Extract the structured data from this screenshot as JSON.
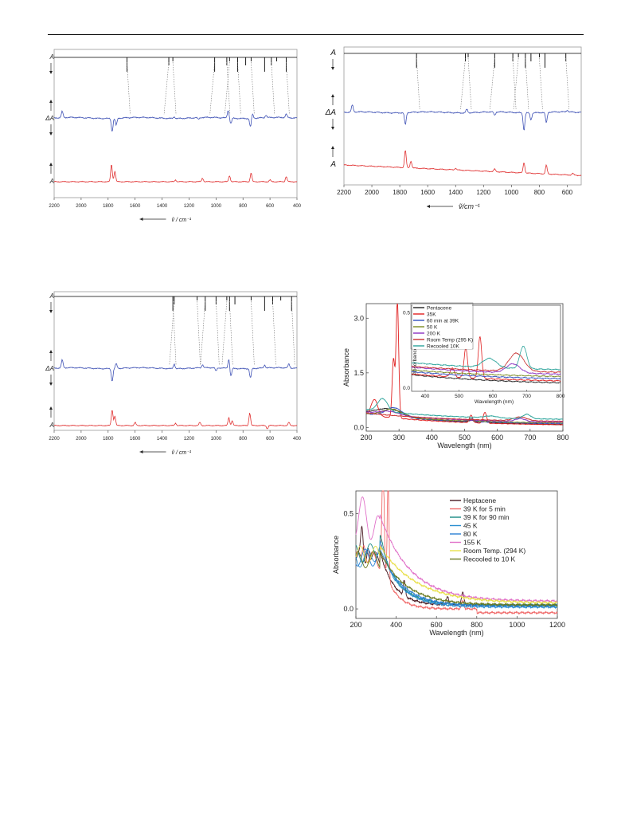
{
  "chart_data": [
    {
      "id": "ir-left-top",
      "type": "line",
      "xlabel": "ṽ / cm⁻¹",
      "xlim": [
        2200,
        400
      ],
      "x_ticks": [
        2200,
        2000,
        1800,
        1600,
        1400,
        1200,
        1000,
        800,
        600,
        400
      ],
      "trace_labels": [
        "A",
        "ΔA",
        "A"
      ],
      "series_colors": [
        "#000000",
        "#3f52b5",
        "#e03030"
      ],
      "stick_peaks": [
        1660,
        1350,
        1320,
        1010,
        920,
        900,
        840,
        780,
        740,
        640,
        590,
        550,
        480
      ],
      "difference_peaks": [
        {
          "x": 2140,
          "y": 0.35
        },
        {
          "x": 1770,
          "y": -0.75
        },
        {
          "x": 1740,
          "y": -0.4
        },
        {
          "x": 1310,
          "y": 0.1
        },
        {
          "x": 1130,
          "y": -0.1
        },
        {
          "x": 910,
          "y": 0.45
        },
        {
          "x": 890,
          "y": -0.3
        },
        {
          "x": 745,
          "y": -0.5
        },
        {
          "x": 730,
          "y": 0.25
        },
        {
          "x": 630,
          "y": 0.15
        },
        {
          "x": 480,
          "y": 0.2
        }
      ],
      "product_peaks": [
        {
          "x": 1775,
          "y": 1.0
        },
        {
          "x": 1750,
          "y": 0.6
        },
        {
          "x": 1300,
          "y": 0.1
        },
        {
          "x": 1100,
          "y": 0.2
        },
        {
          "x": 900,
          "y": 0.35
        },
        {
          "x": 740,
          "y": 0.5
        },
        {
          "x": 600,
          "y": 0.1
        },
        {
          "x": 480,
          "y": 0.3
        }
      ]
    },
    {
      "id": "ir-right-top",
      "type": "line",
      "xlabel": "ṽ/cm⁻¹",
      "xlim": [
        2200,
        500
      ],
      "x_ticks": [
        2200,
        2000,
        1800,
        1600,
        1400,
        1200,
        1000,
        800,
        600
      ],
      "trace_labels": [
        "A",
        "ΔA",
        "A"
      ],
      "series_colors": [
        "#000000",
        "#3f52b5",
        "#e03030"
      ],
      "stick_peaks": [
        1680,
        1330,
        1310,
        1120,
        990,
        950,
        900,
        860,
        800,
        760,
        610
      ],
      "difference_peaks": [
        {
          "x": 2140,
          "y": 0.4
        },
        {
          "x": 1760,
          "y": -0.7
        },
        {
          "x": 1320,
          "y": 0.2
        },
        {
          "x": 1120,
          "y": -0.2
        },
        {
          "x": 910,
          "y": -1.0
        },
        {
          "x": 860,
          "y": -0.4
        },
        {
          "x": 750,
          "y": -0.6
        },
        {
          "x": 600,
          "y": 0.1
        }
      ],
      "product_peaks": [
        {
          "x": 1760,
          "y": 1.0
        },
        {
          "x": 1720,
          "y": 0.4
        },
        {
          "x": 1400,
          "y": 0.1
        },
        {
          "x": 1120,
          "y": 0.15
        },
        {
          "x": 910,
          "y": 0.6
        },
        {
          "x": 750,
          "y": 0.5
        },
        {
          "x": 560,
          "y": 0.1
        }
      ]
    },
    {
      "id": "ir-left-bottom",
      "type": "line",
      "xlabel": "ṽ / cm⁻¹",
      "xlim": [
        2200,
        400
      ],
      "x_ticks": [
        2200,
        2000,
        1800,
        1600,
        1400,
        1200,
        1000,
        800,
        600,
        400
      ],
      "trace_labels": [
        "A",
        "ΔA",
        "A"
      ],
      "series_colors": [
        "#000000",
        "#3f52b5",
        "#e03030"
      ],
      "stick_peaks": [
        1320,
        1310,
        1140,
        1080,
        1000,
        920,
        900,
        860,
        740,
        640,
        580,
        520,
        440
      ],
      "difference_peaks": [
        {
          "x": 2140,
          "y": 0.5
        },
        {
          "x": 1770,
          "y": -0.8
        },
        {
          "x": 1740,
          "y": 0.3
        },
        {
          "x": 1310,
          "y": 0.3
        },
        {
          "x": 1100,
          "y": 0.2
        },
        {
          "x": 1000,
          "y": -0.2
        },
        {
          "x": 905,
          "y": 0.6
        },
        {
          "x": 890,
          "y": -0.5
        },
        {
          "x": 745,
          "y": -0.6
        },
        {
          "x": 640,
          "y": 0.2
        },
        {
          "x": 460,
          "y": 0.25
        }
      ],
      "product_peaks": [
        {
          "x": 1770,
          "y": 1.0
        },
        {
          "x": 1750,
          "y": 0.6
        },
        {
          "x": 1600,
          "y": 0.2
        },
        {
          "x": 1300,
          "y": 0.15
        },
        {
          "x": 1120,
          "y": 0.2
        },
        {
          "x": 905,
          "y": 0.5
        },
        {
          "x": 880,
          "y": 0.3
        },
        {
          "x": 750,
          "y": 0.8
        },
        {
          "x": 620,
          "y": -0.2
        },
        {
          "x": 460,
          "y": 0.2
        }
      ]
    },
    {
      "id": "uvvis-pentacene",
      "type": "line",
      "xlabel": "Wavelength (nm)",
      "ylabel": "Absorbance",
      "xlim": [
        200,
        800
      ],
      "ylim": [
        -0.1,
        3.4
      ],
      "x_ticks": [
        200,
        300,
        400,
        500,
        600,
        700,
        800
      ],
      "y_ticks": [
        0.0,
        1.5,
        3.0
      ],
      "legend_position": "top-right",
      "series": [
        {
          "name": "Pentacene",
          "color": "#222222",
          "offset": 0.05,
          "baseline": 0.35,
          "peaks": [
            {
              "x": 270,
              "y": 0.2,
              "w": 40
            },
            {
              "x": 520,
              "y": 0.05,
              "w": 8
            },
            {
              "x": 560,
              "y": 0.07,
              "w": 8
            }
          ]
        },
        {
          "name": "35K",
          "color": "#e02020",
          "offset": 0.05,
          "baseline": 0.3,
          "peaks": [
            {
              "x": 283,
              "y": 1.6,
              "w": 4
            },
            {
              "x": 295,
              "y": 3.2,
              "w": 4
            },
            {
              "x": 225,
              "y": 0.45,
              "w": 10
            },
            {
              "x": 520,
              "y": 0.2,
              "w": 5
            },
            {
              "x": 562,
              "y": 0.3,
              "w": 5
            }
          ]
        },
        {
          "name": "60 min at 39K",
          "color": "#3050c0",
          "offset": 0.08,
          "baseline": 0.3,
          "peaks": [
            {
              "x": 285,
              "y": 0.25,
              "w": 25
            },
            {
              "x": 520,
              "y": 0.08,
              "w": 8
            }
          ]
        },
        {
          "name": "50 K",
          "color": "#7a8a20",
          "offset": 0.1,
          "baseline": 0.28,
          "peaks": [
            {
              "x": 280,
              "y": 0.2,
              "w": 30
            },
            {
              "x": 520,
              "y": 0.05,
              "w": 8
            }
          ]
        },
        {
          "name": "200 K",
          "color": "#8a30c0",
          "offset": 0.12,
          "baseline": 0.3,
          "peaks": [
            {
              "x": 270,
              "y": 0.1,
              "w": 30
            },
            {
              "x": 670,
              "y": 0.08,
              "w": 15
            }
          ]
        },
        {
          "name": "Room Temp (295 K)",
          "color": "#c83030",
          "offset": 0.15,
          "baseline": 0.25,
          "peaks": [
            {
              "x": 670,
              "y": 0.1,
              "w": 20
            }
          ]
        },
        {
          "name": "Recooled 10K",
          "color": "#2aa39a",
          "offset": 0.2,
          "baseline": 0.3,
          "peaks": [
            {
              "x": 250,
              "y": 0.35,
              "w": 15
            },
            {
              "x": 580,
              "y": 0.05,
              "w": 20
            },
            {
              "x": 690,
              "y": 0.12,
              "w": 12
            }
          ]
        }
      ],
      "inset": {
        "xlabel": "Wavelength (nm)",
        "ylabel": "Absorbance",
        "xlim": [
          360,
          800
        ],
        "ylim": [
          -0.02,
          0.55
        ],
        "x_ticks": [
          400,
          500,
          600,
          700,
          800
        ],
        "y_ticks": [
          0.0,
          0.5
        ]
      }
    },
    {
      "id": "uvvis-heptacene",
      "type": "line",
      "xlabel": "Wavelength (nm)",
      "ylabel": "Absorbance",
      "xlim": [
        200,
        1200
      ],
      "ylim": [
        -0.05,
        0.62
      ],
      "x_ticks": [
        200,
        400,
        600,
        800,
        1000,
        1200
      ],
      "y_ticks": [
        0.0,
        0.5
      ],
      "legend_position": "top-right",
      "series": [
        {
          "name": "Heptacene",
          "color": "#4a1a22",
          "tail": 0.02,
          "amp": 0.28,
          "decay": 70,
          "peaks": [
            {
              "x": 230,
              "y": 0.15,
              "w": 6
            },
            {
              "x": 260,
              "y": 0.1,
              "w": 6
            },
            {
              "x": 440,
              "y": 0.08,
              "w": 5
            },
            {
              "x": 655,
              "y": 0.04,
              "w": 6
            },
            {
              "x": 730,
              "y": 0.07,
              "w": 6
            }
          ]
        },
        {
          "name": "39 K for 5 min",
          "color": "#f06a6a",
          "tail": 0.0,
          "amp": 0.3,
          "decay": 60,
          "peaks": [
            {
              "x": 335,
              "y": 0.6,
              "w": 5
            },
            {
              "x": 360,
              "y": 0.6,
              "w": 4
            },
            {
              "x": 240,
              "y": 0.12,
              "w": 8
            },
            {
              "x": 730,
              "y": 0.04,
              "w": 6
            }
          ]
        },
        {
          "name": "39 K for 90 min",
          "color": "#1a8a82",
          "tail": 0.02,
          "amp": 0.32,
          "decay": 90,
          "peaks": [
            {
              "x": 320,
              "y": 0.05,
              "w": 20
            }
          ]
        },
        {
          "name": "45 K",
          "color": "#2a8fd0",
          "tail": 0.01,
          "amp": 0.3,
          "decay": 100,
          "peaks": [
            {
              "x": 320,
              "y": 0.05,
              "w": 25
            }
          ]
        },
        {
          "name": "80 K",
          "color": "#2b7fd4",
          "tail": 0.015,
          "amp": 0.3,
          "decay": 110,
          "peaks": []
        },
        {
          "name": "155 K",
          "color": "#e070c8",
          "tail": 0.04,
          "amp": 0.45,
          "decay": 150,
          "peaks": [
            {
              "x": 230,
              "y": 0.1,
              "w": 20
            }
          ]
        },
        {
          "name": "Room Temp. (294 K)",
          "color": "#e8e04a",
          "tail": 0.03,
          "amp": 0.3,
          "decay": 180,
          "peaks": []
        },
        {
          "name": "Recooled to 10 K",
          "color": "#6a7a20",
          "tail": 0.02,
          "amp": 0.28,
          "decay": 130,
          "peaks": []
        }
      ]
    }
  ]
}
